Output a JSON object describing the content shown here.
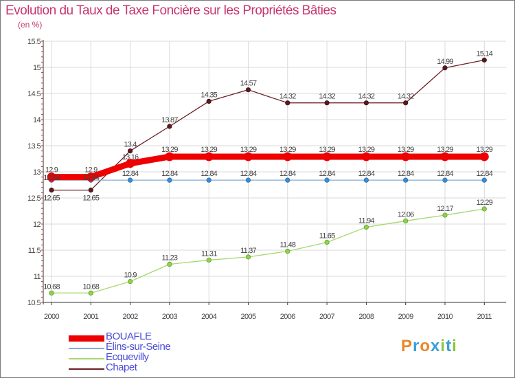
{
  "title": "Evolution du Taux de Taxe Foncière sur les Propriétés Bâties",
  "subtitle": "(en %)",
  "logo": {
    "text": "Proxiti",
    "colors": [
      "#e9862b",
      "#3b9fd8",
      "#e9862b",
      "#3b9fd8",
      "#8fc43a",
      "#3b9fd8",
      "#8fc43a"
    ]
  },
  "chart_data": {
    "type": "line",
    "title": "Evolution du Taux de Taxe Foncière sur les Propriétés Bâties",
    "ylabel": "(en %)",
    "xlabel": "",
    "ylim": [
      10.5,
      15.5
    ],
    "yticks": [
      "10.5",
      "11",
      "11.5",
      "12",
      "12.5",
      "13",
      "13.5",
      "14",
      "14.5",
      "15",
      "15.5"
    ],
    "x": [
      "2000",
      "2001",
      "2002",
      "2003",
      "2004",
      "2005",
      "2006",
      "2007",
      "2008",
      "2009",
      "2010",
      "2011"
    ],
    "series": [
      {
        "name": "Chapet",
        "color": "#6b1e24",
        "values": [
          12.65,
          12.65,
          13.4,
          13.87,
          14.35,
          14.57,
          14.32,
          14.32,
          14.32,
          14.32,
          14.99,
          15.14
        ],
        "labels": [
          "12.65",
          "12.65",
          "13.4",
          "13.87",
          "14.35",
          "14.57",
          "14.32",
          "14.32",
          "14.32",
          "14.32",
          "14.99",
          "15.14"
        ]
      },
      {
        "name": "Ecquevilly",
        "color": "#a5d86e",
        "values": [
          10.68,
          10.68,
          10.9,
          11.23,
          11.31,
          11.37,
          11.48,
          11.65,
          11.94,
          12.06,
          12.17,
          12.29
        ],
        "labels": [
          "10.68",
          "10.68",
          "10.9",
          "11.23",
          "11.31",
          "11.37",
          "11.48",
          "11.65",
          "11.94",
          "12.06",
          "12.17",
          "12.29"
        ]
      },
      {
        "name": "Élins-sur-Seine",
        "color": "#84acd2",
        "values": [
          12.84,
          12.84,
          12.84,
          12.84,
          12.84,
          12.84,
          12.84,
          12.84,
          12.84,
          12.84,
          12.84,
          12.84
        ],
        "labels": [
          "12.84",
          "12.84",
          "12.84",
          "12.84",
          "12.84",
          "12.84",
          "12.84",
          "12.84",
          "12.84",
          "12.84",
          "12.84",
          "12.84"
        ]
      },
      {
        "name": "BOUAFLE",
        "color": "#ee0000",
        "values": [
          12.9,
          12.9,
          13.16,
          13.29,
          13.29,
          13.29,
          13.29,
          13.29,
          13.29,
          13.29,
          13.29,
          13.29
        ],
        "labels": [
          "12.9",
          "12.9",
          "13.16",
          "13.29",
          "13.29",
          "13.29",
          "13.29",
          "13.29",
          "13.29",
          "13.29",
          "13.29",
          "13.29"
        ]
      }
    ],
    "legend": [
      "BOUAFLE",
      "Élins-sur-Seine",
      "Ecquevilly",
      "Chapet"
    ],
    "legend_position": "bottom-left"
  }
}
